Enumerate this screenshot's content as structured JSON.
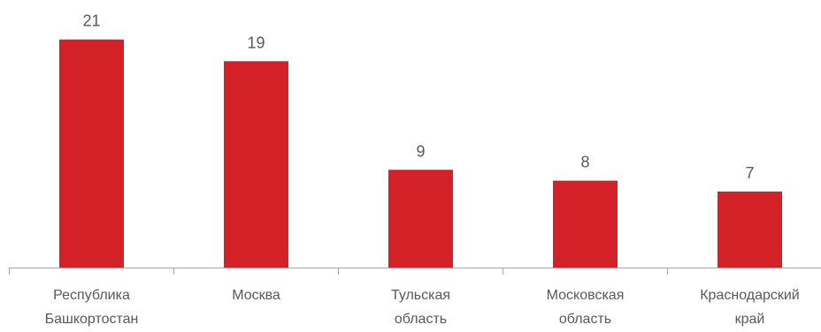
{
  "chart_data": {
    "type": "bar",
    "categories": [
      [
        "Республика",
        "Башкортостан"
      ],
      [
        "Москва"
      ],
      [
        "Тульская",
        "область"
      ],
      [
        "Московская",
        "область"
      ],
      [
        "Краснодарский",
        "край"
      ]
    ],
    "values": [
      21,
      19,
      9,
      8,
      7
    ],
    "title": "",
    "xlabel": "",
    "ylabel": "",
    "ylim": [
      0,
      23
    ],
    "grid": false,
    "legend": "none",
    "bar_color": "#d42027",
    "axis_color": "#a6a6a6",
    "text_color": "#595959"
  }
}
